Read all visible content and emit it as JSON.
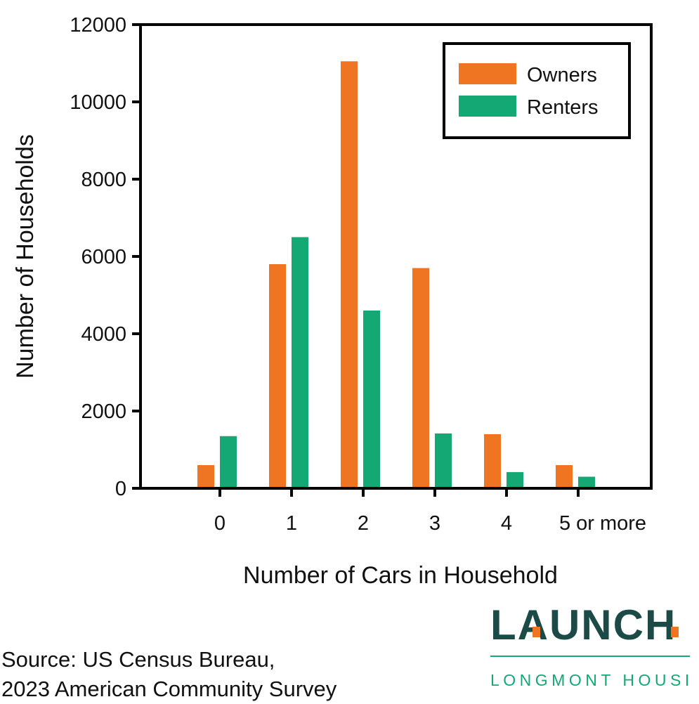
{
  "chart_data": {
    "type": "bar",
    "title": "",
    "xlabel": "Number of Cars in Household",
    "ylabel": "Number of Households",
    "categories": [
      "0",
      "1",
      "2",
      "3",
      "4",
      "5 or more"
    ],
    "series": [
      {
        "name": "Owners",
        "color": "#f07522",
        "values": [
          600,
          5800,
          11050,
          5700,
          1400,
          600
        ]
      },
      {
        "name": "Renters",
        "color": "#14a874",
        "values": [
          1350,
          6500,
          4600,
          1420,
          420,
          300
        ]
      }
    ],
    "ylim": [
      0,
      12000
    ],
    "yticks": [
      0,
      2000,
      4000,
      6000,
      8000,
      10000,
      12000
    ],
    "grid": false,
    "legend_position": "top-right"
  },
  "source": {
    "line1": "Source: US Census Bureau,",
    "line2": "2023 American Community Survey"
  },
  "logo": {
    "brand": "LAUNCH",
    "subtitle": "LONGMONT HOUSING",
    "brand_color": "#1c4a46",
    "accent_color": "#f07522",
    "subtitle_color": "#14a874"
  }
}
